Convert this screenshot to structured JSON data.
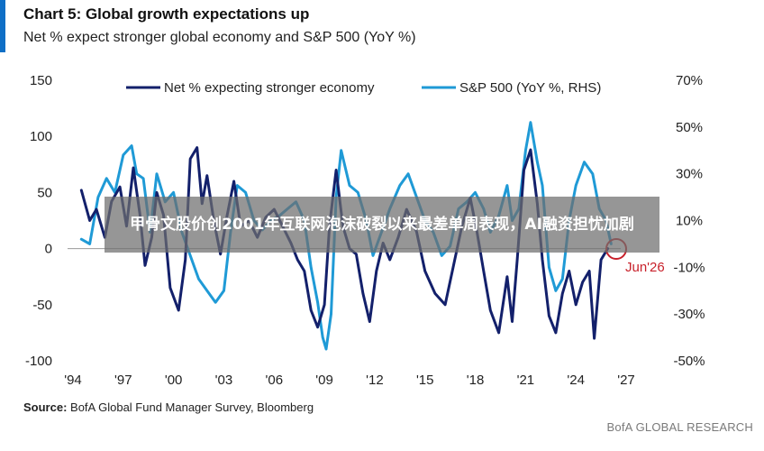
{
  "header": {
    "title": "Chart 5: Global growth expectations up",
    "subtitle": "Net % expect stronger global economy and S&P 500 (YoY %)"
  },
  "footer": {
    "source_label": "Source:",
    "source_text": "BofA Global Fund Manager Survey, Bloomberg",
    "brand": "BofA GLOBAL RESEARCH"
  },
  "overlay": {
    "headline": "甲骨文股价创2001年互联网泡沫破裂以来最差单周表现，AI融资担忧加剧"
  },
  "colors": {
    "accent": "#0f6fc6",
    "series_dark": "#13206b",
    "series_light": "#1f9ad6",
    "marker": "#c8202a"
  },
  "chart_data": {
    "type": "line",
    "title": "Chart 5: Global growth expectations up",
    "xlabel": "",
    "ylabel": "",
    "x_ticks": [
      "'94",
      "'97",
      "'00",
      "'03",
      "'06",
      "'09",
      "'12",
      "'15",
      "'18",
      "'21",
      "'24",
      "'27"
    ],
    "xlim": [
      1994,
      2027
    ],
    "ylim": [
      -100,
      150
    ],
    "y_ticks": [
      150,
      100,
      50,
      0,
      -50,
      -100
    ],
    "y2lim": [
      -50,
      70
    ],
    "y2_ticks": [
      "70%",
      "50%",
      "30%",
      "10%",
      "-10%",
      "-30%",
      "-50%"
    ],
    "legend_position": "top",
    "grid": false,
    "annotation": "Jun'26",
    "series": [
      {
        "name": "Net % expecting stronger economy",
        "axis": "left",
        "x": [
          1994.5,
          1995.0,
          1995.4,
          1995.9,
          1996.3,
          1996.8,
          1997.2,
          1997.6,
          1998.0,
          1998.3,
          1998.7,
          1999.0,
          1999.4,
          1999.8,
          2000.3,
          2000.7,
          2001.0,
          2001.4,
          2001.7,
          2002.0,
          2002.4,
          2002.8,
          2003.2,
          2003.6,
          2004.0,
          2004.5,
          2005.0,
          2005.5,
          2006.0,
          2006.5,
          2007.0,
          2007.4,
          2007.8,
          2008.2,
          2008.6,
          2009.0,
          2009.3,
          2009.7,
          2010.1,
          2010.5,
          2010.9,
          2011.3,
          2011.7,
          2012.1,
          2012.5,
          2012.9,
          2013.4,
          2013.9,
          2014.5,
          2015.0,
          2015.6,
          2016.2,
          2016.7,
          2017.2,
          2017.7,
          2018.1,
          2018.5,
          2018.9,
          2019.4,
          2019.9,
          2020.2,
          2020.5,
          2020.9,
          2021.3,
          2021.7,
          2022.0,
          2022.4,
          2022.8,
          2023.2,
          2023.6,
          2024.0,
          2024.4,
          2024.8,
          2025.1,
          2025.5,
          2025.9
        ],
        "values": [
          52,
          25,
          35,
          10,
          42,
          55,
          20,
          72,
          30,
          -15,
          10,
          50,
          30,
          -35,
          -55,
          -10,
          80,
          90,
          40,
          65,
          25,
          -5,
          30,
          60,
          20,
          25,
          10,
          28,
          35,
          20,
          5,
          -10,
          -20,
          -55,
          -70,
          -50,
          20,
          70,
          20,
          0,
          -5,
          -40,
          -65,
          -20,
          5,
          -10,
          10,
          35,
          15,
          -20,
          -40,
          -50,
          -15,
          20,
          45,
          15,
          -20,
          -55,
          -75,
          -25,
          -65,
          -10,
          70,
          88,
          40,
          -10,
          -60,
          -75,
          -40,
          -20,
          -50,
          -30,
          -20,
          -80,
          -10,
          0
        ]
      },
      {
        "name": "S&P 500 (YoY %, RHS)",
        "axis": "right",
        "x": [
          1994.5,
          1995.0,
          1995.5,
          1996.0,
          1996.5,
          1997.0,
          1997.5,
          1997.8,
          1998.2,
          1998.6,
          1999.0,
          1999.5,
          2000.0,
          2000.5,
          2001.0,
          2001.5,
          2002.0,
          2002.5,
          2003.0,
          2003.4,
          2003.8,
          2004.3,
          2004.8,
          2005.3,
          2005.8,
          2006.3,
          2006.8,
          2007.3,
          2007.8,
          2008.2,
          2008.6,
          2008.9,
          2009.1,
          2009.4,
          2009.7,
          2010.0,
          2010.5,
          2011.0,
          2011.5,
          2011.9,
          2012.4,
          2012.9,
          2013.5,
          2014.0,
          2014.5,
          2015.0,
          2015.5,
          2016.0,
          2016.5,
          2017.0,
          2017.5,
          2018.0,
          2018.5,
          2018.9,
          2019.4,
          2019.9,
          2020.2,
          2020.6,
          2021.0,
          2021.3,
          2021.7,
          2022.0,
          2022.4,
          2022.8,
          2023.2,
          2023.6,
          2024.0,
          2024.5,
          2025.0,
          2025.4,
          2025.8,
          2026.1
        ],
        "values": [
          2,
          0,
          20,
          28,
          22,
          38,
          42,
          30,
          28,
          5,
          30,
          18,
          22,
          5,
          -5,
          -15,
          -20,
          -25,
          -20,
          5,
          25,
          22,
          10,
          6,
          10,
          12,
          15,
          18,
          10,
          -10,
          -25,
          -40,
          -45,
          -30,
          20,
          40,
          25,
          22,
          10,
          -5,
          5,
          15,
          25,
          30,
          20,
          10,
          5,
          -5,
          -1,
          15,
          18,
          22,
          15,
          5,
          12,
          25,
          10,
          15,
          40,
          52,
          35,
          25,
          -10,
          -20,
          -15,
          10,
          25,
          35,
          30,
          15,
          10,
          0
        ]
      }
    ]
  }
}
